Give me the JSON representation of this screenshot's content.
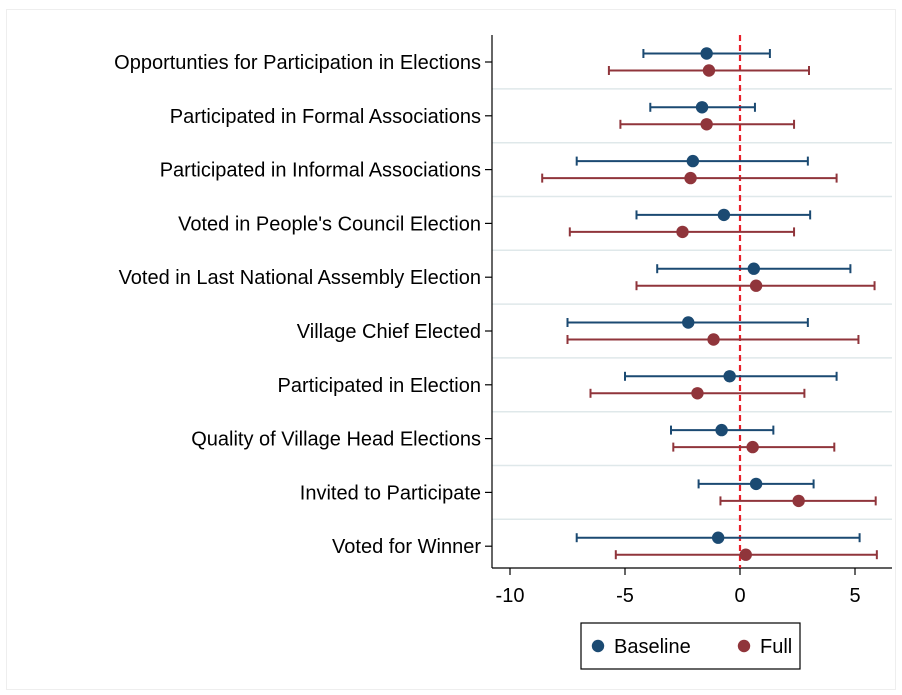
{
  "chart_data": {
    "type": "scatter",
    "title": "",
    "xlabel": "",
    "ylabel": "",
    "xlim": [
      -10.5,
      6.5
    ],
    "x_ticks": [
      -10,
      -5,
      0,
      5
    ],
    "x_tick_labels": [
      "-10",
      "-5",
      "0",
      "5"
    ],
    "reference_line": {
      "x": 0,
      "style": "dashed",
      "color": "#e8202a"
    },
    "categories": [
      "Opportunties for Participation in Elections",
      "Participated in Formal Associations",
      "Participated in Informal Associations",
      "Voted in People's Council Election",
      "Voted in Last National Assembly Election",
      "Village Chief Elected",
      "Participated in Election",
      "Quality of Village Head Elections",
      "Invited to Participate",
      "Voted for Winner"
    ],
    "legend_position": "bottom",
    "series": [
      {
        "name": "Baseline",
        "color": "#1b4a72",
        "estimates": [
          -1.45,
          -1.65,
          -2.05,
          -0.7,
          0.6,
          -2.25,
          -0.45,
          -0.8,
          0.7,
          -0.95
        ],
        "ci_low": [
          -4.2,
          -3.9,
          -7.1,
          -4.5,
          -3.6,
          -7.5,
          -5.0,
          -3.0,
          -1.8,
          -7.1
        ],
        "ci_high": [
          1.3,
          0.65,
          2.95,
          3.05,
          4.8,
          2.95,
          4.2,
          1.45,
          3.2,
          5.2
        ]
      },
      {
        "name": "Full",
        "color": "#90353b",
        "estimates": [
          -1.35,
          -1.45,
          -2.15,
          -2.5,
          0.7,
          -1.15,
          -1.85,
          0.55,
          2.55,
          0.25
        ],
        "ci_low": [
          -5.7,
          -5.2,
          -8.6,
          -7.4,
          -4.5,
          -7.5,
          -6.5,
          -2.9,
          -0.85,
          -5.4
        ],
        "ci_high": [
          3.0,
          2.35,
          4.2,
          2.35,
          5.85,
          5.15,
          2.8,
          4.1,
          5.9,
          5.95
        ]
      }
    ]
  }
}
